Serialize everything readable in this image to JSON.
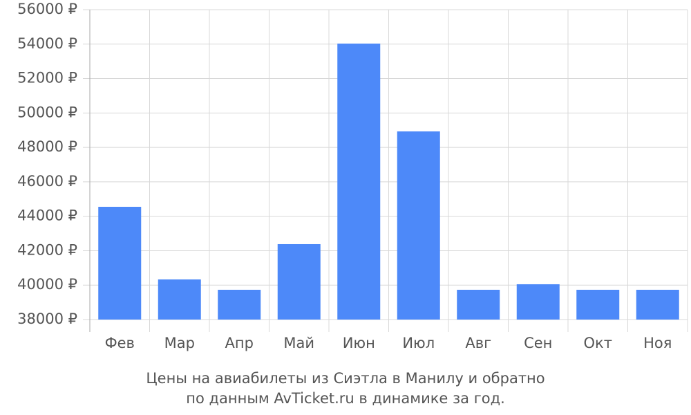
{
  "chart_data": {
    "type": "bar",
    "title": [
      "Цены на авиабилеты из Сиэтла в Манилу и обратно",
      "по данным AvTicket.ru в динамике за год."
    ],
    "categories": [
      "Фев",
      "Мар",
      "Апр",
      "Май",
      "Июн",
      "Июл",
      "Авг",
      "Сен",
      "Окт",
      "Ноя"
    ],
    "values": [
      44550,
      40330,
      39730,
      42380,
      54030,
      48930,
      39730,
      40050,
      39730,
      39730
    ],
    "color": "#4d89f9",
    "ylim": [
      38000,
      56000
    ],
    "yticks": [
      {
        "value": 38000,
        "label": "38000 ₽"
      },
      {
        "value": 40000,
        "label": "40000 ₽"
      },
      {
        "value": 42000,
        "label": "42000 ₽"
      },
      {
        "value": 44000,
        "label": "44000 ₽"
      },
      {
        "value": 46000,
        "label": "46000 ₽"
      },
      {
        "value": 48000,
        "label": "48000 ₽"
      },
      {
        "value": 50000,
        "label": "50000 ₽"
      },
      {
        "value": 52000,
        "label": "52000 ₽"
      },
      {
        "value": 54000,
        "label": "54000 ₽"
      },
      {
        "value": 56000,
        "label": "56000 ₽"
      }
    ],
    "grid": true
  }
}
